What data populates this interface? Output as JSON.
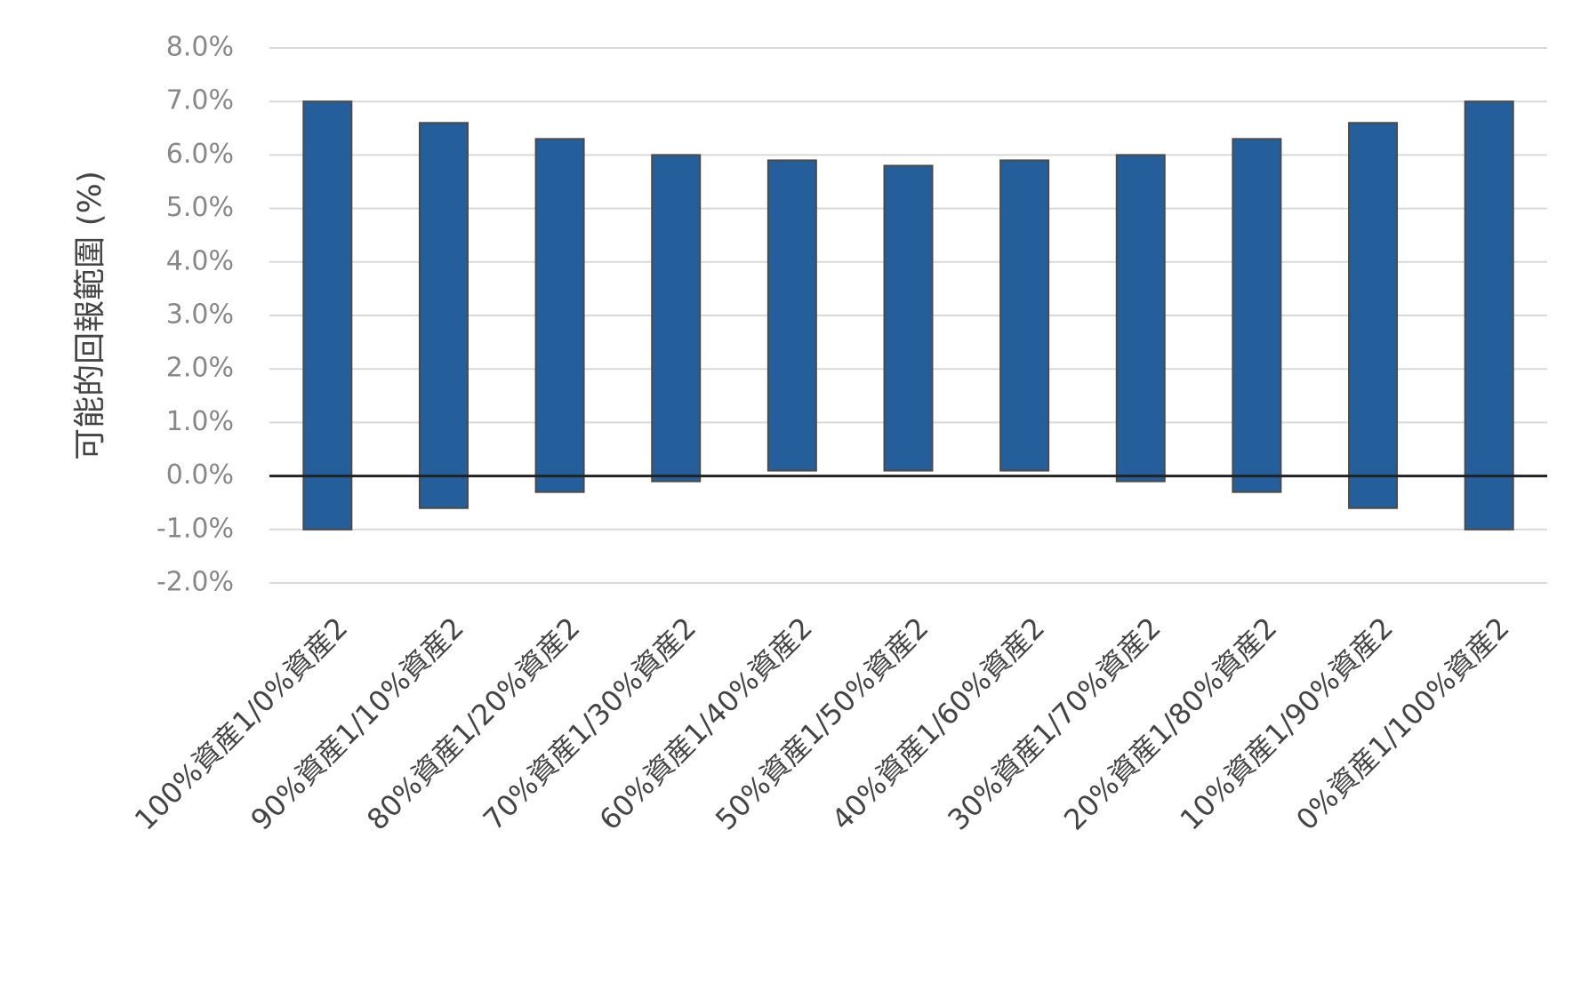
{
  "chart_data": {
    "type": "rangebar",
    "y_label": "可能的回報範圍 (%)",
    "categories": [
      "100%資産1/0%資産2",
      "90%資産1/10%資産2",
      "80%資産1/20%資産2",
      "70%資産1/30%資産2",
      "60%資産1/40%資産2",
      "50%資産1/50%資産2",
      "40%資産1/60%資産2",
      "30%資産1/70%資産2",
      "20%資産1/80%資産2",
      "10%資産1/90%資産2",
      "0%資産1/100%資産2"
    ],
    "low": [
      -1.0,
      -0.6,
      -0.3,
      -0.1,
      0.1,
      0.1,
      0.1,
      -0.1,
      -0.3,
      -0.6,
      -1.0
    ],
    "high": [
      7.0,
      6.6,
      6.3,
      6.0,
      5.9,
      5.8,
      5.9,
      6.0,
      6.3,
      6.6,
      7.0
    ],
    "color": "#245f9c",
    "ylim": [
      -2,
      8
    ],
    "yticks": [
      {
        "value": -2,
        "label": "-2.0%"
      },
      {
        "value": -1,
        "label": "-1.0%"
      },
      {
        "value": 0,
        "label": "0.0%"
      },
      {
        "value": 1,
        "label": "1.0%"
      },
      {
        "value": 2,
        "label": "2.0%"
      },
      {
        "value": 3,
        "label": "3.0%"
      },
      {
        "value": 4,
        "label": "4.0%"
      },
      {
        "value": 5,
        "label": "5.0%"
      },
      {
        "value": 6,
        "label": "6.0%"
      },
      {
        "value": 7,
        "label": "7.0%"
      },
      {
        "value": 8,
        "label": "8.0%"
      }
    ],
    "grid": true
  }
}
